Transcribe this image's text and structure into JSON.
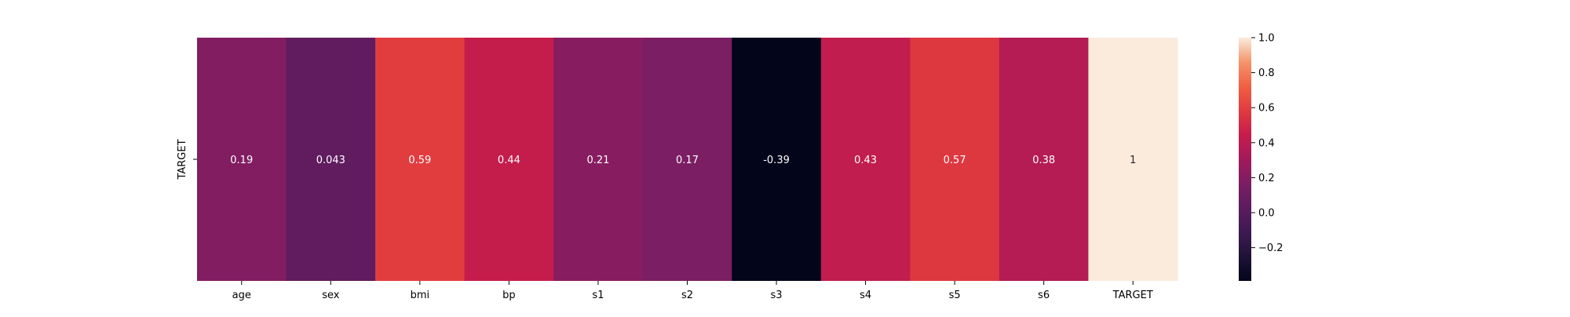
{
  "chart_data": {
    "type": "heatmap",
    "title": "",
    "xlabel": "",
    "ylabel": "",
    "rows": [
      "TARGET"
    ],
    "columns": [
      "age",
      "sex",
      "bmi",
      "bp",
      "s1",
      "s2",
      "s3",
      "s4",
      "s5",
      "s6",
      "TARGET"
    ],
    "values": [
      [
        0.19,
        0.043,
        0.59,
        0.44,
        0.21,
        0.17,
        -0.39,
        0.43,
        0.57,
        0.38,
        1
      ]
    ],
    "annotations": [
      [
        "0.19",
        "0.043",
        "0.59",
        "0.44",
        "0.21",
        "0.17",
        "-0.39",
        "0.43",
        "0.57",
        "0.38",
        "1"
      ]
    ],
    "colormap": "rocket",
    "colorbar": {
      "range": [
        -0.39,
        1.0
      ],
      "ticks": [
        -0.2,
        0.0,
        0.2,
        0.4,
        0.6,
        0.8,
        1.0
      ],
      "tick_labels": [
        "−0.2",
        "0.0",
        "0.2",
        "0.4",
        "0.6",
        "0.8",
        "1.0"
      ],
      "placement": "right"
    },
    "grid": false,
    "legend": "none"
  }
}
